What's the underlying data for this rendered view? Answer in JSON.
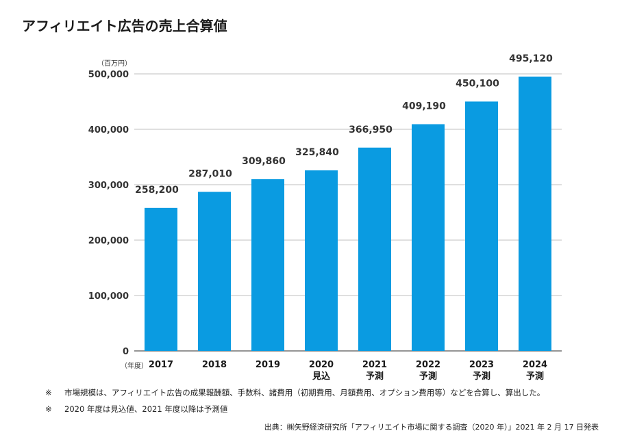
{
  "title": "アフィリエイト広告の売上合算値",
  "notes": [
    {
      "mark": "※",
      "text": "市場規模は、アフィリエイト広告の成果報酬額、手数料、諸費用（初期費用、月額費用、オプション費用等）などを合算し、算出した。"
    },
    {
      "mark": "※",
      "text": "2020 年度は見込値、2021 年度以降は予測値"
    }
  ],
  "source": "出典：㈱矢野経済研究所「アフィリエイト市場に関する調査（2020 年）」2021 年 2 月 17 日発表",
  "colors": {
    "bar": "#0a9be1",
    "grid": "#bfbfbf",
    "axis": "#555555"
  },
  "chart_data": {
    "type": "bar",
    "title": "アフィリエイト広告の売上合算値",
    "ylabel": "（百万円）",
    "xlabel": "（年度）",
    "ylim": [
      0,
      500000
    ],
    "yticks": [
      "0",
      "100,000",
      "200,000",
      "300,000",
      "400,000",
      "500,000"
    ],
    "ytick_values": [
      0,
      100000,
      200000,
      300000,
      400000,
      500000
    ],
    "categories": [
      {
        "year": "2017",
        "sub": ""
      },
      {
        "year": "2018",
        "sub": ""
      },
      {
        "year": "2019",
        "sub": ""
      },
      {
        "year": "2020",
        "sub": "見込"
      },
      {
        "year": "2021",
        "sub": "予測"
      },
      {
        "year": "2022",
        "sub": "予測"
      },
      {
        "year": "2023",
        "sub": "予測"
      },
      {
        "year": "2024",
        "sub": "予測"
      }
    ],
    "values": [
      258200,
      287010,
      309860,
      325840,
      366950,
      409190,
      450100,
      495120
    ],
    "value_labels": [
      "258,200",
      "287,010",
      "309,860",
      "325,840",
      "366,950",
      "409,190",
      "450,100",
      "495,120"
    ],
    "grid": true,
    "legend": "none"
  }
}
